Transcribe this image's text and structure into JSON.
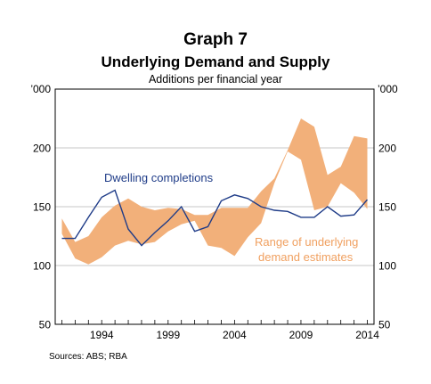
{
  "header": {
    "graph_number": "Graph 7",
    "title": "Underlying Demand and Supply",
    "subtitle": "Additions per financial year"
  },
  "source": "Sources:   ABS; RBA",
  "chart_data": {
    "type": "area",
    "y_unit_left": "’000",
    "y_unit_right": "’000",
    "ylim": [
      50,
      250
    ],
    "y_ticks": [
      50,
      100,
      150,
      200
    ],
    "xlim": [
      1990.5,
      2014.5
    ],
    "x_ticks": [
      1994,
      1999,
      2004,
      2009,
      2014
    ],
    "x_minor_ticks": [
      1991,
      1992,
      1993,
      1994,
      1995,
      1996,
      1997,
      1998,
      1999,
      2000,
      2001,
      2002,
      2003,
      2004,
      2005,
      2006,
      2007,
      2008,
      2009,
      2010,
      2011,
      2012,
      2013,
      2014
    ],
    "grid": {
      "horizontal": true,
      "vertical": false
    },
    "colors": {
      "band": "#f2b07a",
      "line": "#1f3c88",
      "band_label": "#f0a060"
    },
    "series": [
      {
        "name": "Range of underlying demand estimates",
        "kind": "band",
        "x": [
          1991,
          1992,
          1993,
          1994,
          1995,
          1996,
          1997,
          1998,
          1999,
          2000,
          2001,
          2002,
          2003,
          2004,
          2005,
          2006,
          2007,
          2008,
          2009,
          2010,
          2011,
          2012,
          2013,
          2014
        ],
        "low": [
          127,
          106,
          101,
          107,
          117,
          121,
          118,
          120,
          129,
          135,
          138,
          117,
          115,
          108,
          124,
          136,
          170,
          197,
          190,
          147,
          150,
          170,
          162,
          148
        ],
        "high": [
          140,
          120,
          125,
          141,
          151,
          157,
          150,
          147,
          149,
          148,
          143,
          143,
          149,
          149,
          149,
          163,
          174,
          198,
          225,
          218,
          177,
          184,
          210,
          208
        ]
      },
      {
        "name": "Dwelling completions",
        "kind": "line",
        "x": [
          1991,
          1992,
          1993,
          1994,
          1995,
          1996,
          1997,
          1998,
          1999,
          2000,
          2001,
          2002,
          2003,
          2004,
          2005,
          2006,
          2007,
          2008,
          2009,
          2010,
          2011,
          2012,
          2013,
          2014
        ],
        "values": [
          123,
          123,
          141,
          158,
          164,
          131,
          117,
          128,
          138,
          150,
          129,
          133,
          155,
          160,
          157,
          150,
          147,
          146,
          141,
          141,
          150,
          142,
          143,
          156
        ]
      }
    ],
    "annotations": [
      {
        "series": "Dwelling completions",
        "text": "Dwelling completions"
      },
      {
        "series": "Range of underlying demand estimates",
        "text": "Range of underlying",
        "line2": "demand estimates"
      }
    ]
  }
}
